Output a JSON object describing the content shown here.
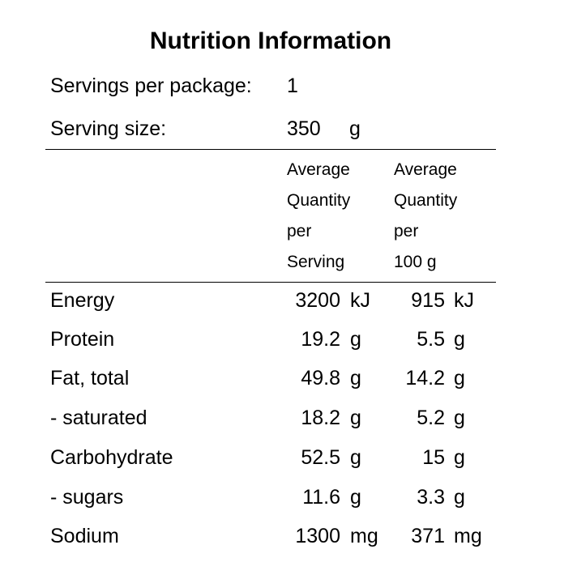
{
  "title": "Nutrition Information",
  "servings": {
    "label": "Servings per package:",
    "value": "1"
  },
  "serving_size": {
    "label": "Serving size:",
    "value": "350",
    "unit": "g"
  },
  "columns": {
    "per_serving": [
      "Average",
      "Quantity",
      "per",
      "Serving"
    ],
    "per_100g": [
      "Average",
      "Quantity",
      "per",
      "100 g"
    ]
  },
  "rows": [
    {
      "name": "Energy",
      "per_serving": "3200",
      "per_serving_unit": "kJ",
      "per_100g": "915",
      "per_100g_unit": "kJ"
    },
    {
      "name": "Protein",
      "per_serving": "19.2",
      "per_serving_unit": "g",
      "per_100g": "5.5",
      "per_100g_unit": "g"
    },
    {
      "name": "Fat, total",
      "per_serving": "49.8",
      "per_serving_unit": "g",
      "per_100g": "14.2",
      "per_100g_unit": "g"
    },
    {
      "name": "- saturated",
      "per_serving": "18.2",
      "per_serving_unit": "g",
      "per_100g": "5.2",
      "per_100g_unit": "g"
    },
    {
      "name": "Carbohydrate",
      "per_serving": "52.5",
      "per_serving_unit": "g",
      "per_100g": "15",
      "per_100g_unit": "g"
    },
    {
      "name": "- sugars",
      "per_serving": "11.6",
      "per_serving_unit": "g",
      "per_100g": "3.3",
      "per_100g_unit": "g"
    },
    {
      "name": "Sodium",
      "per_serving": "1300",
      "per_serving_unit": "mg",
      "per_100g": "371",
      "per_100g_unit": "mg"
    }
  ]
}
